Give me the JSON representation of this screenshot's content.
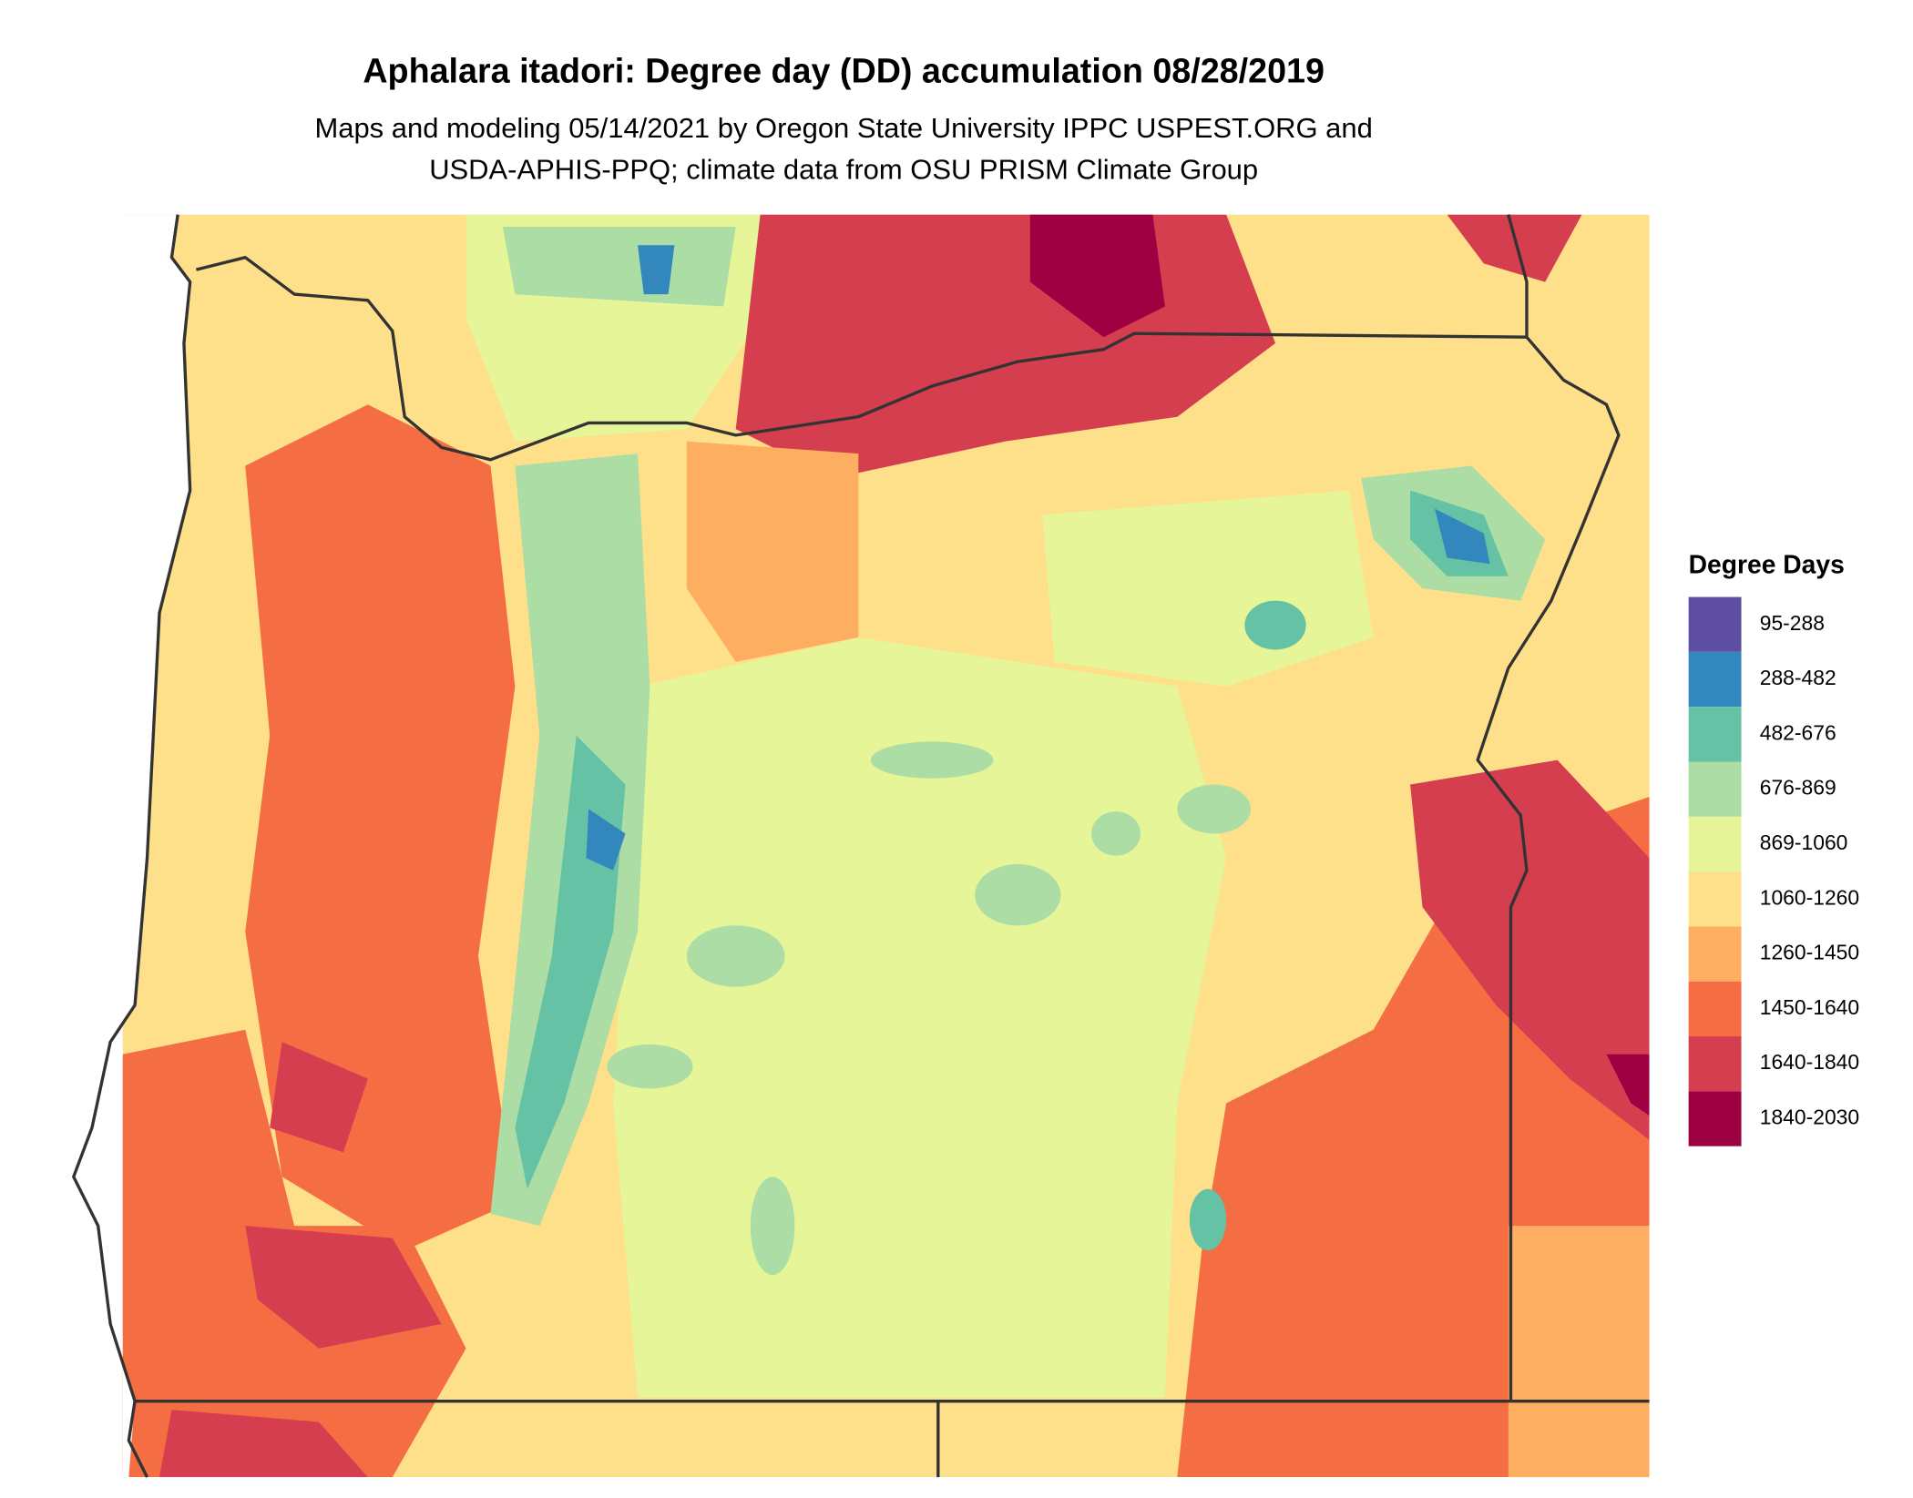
{
  "title": "Aphalara itadori: Degree day (DD) accumulation 08/28/2019",
  "subtitle": [
    "Maps and modeling 05/14/2021 by Oregon State University IPPC USPEST.ORG and",
    "USDA-APHIS-PPQ; climate data from OSU PRISM Climate Group"
  ],
  "legend": {
    "title": "Degree Days",
    "items": [
      {
        "label": "95-288",
        "color": "#5e4fa2"
      },
      {
        "label": "288-482",
        "color": "#3288bd"
      },
      {
        "label": "482-676",
        "color": "#66c2a5"
      },
      {
        "label": "676-869",
        "color": "#abdda4"
      },
      {
        "label": "869-1060",
        "color": "#e6f598"
      },
      {
        "label": "1060-1260",
        "color": "#fee08b"
      },
      {
        "label": "1260-1450",
        "color": "#fdae61"
      },
      {
        "label": "1450-1640",
        "color": "#f46d43"
      },
      {
        "label": "1640-1840",
        "color": "#d53e4f"
      },
      {
        "label": "1840-2030",
        "color": "#9e0142"
      }
    ]
  }
}
